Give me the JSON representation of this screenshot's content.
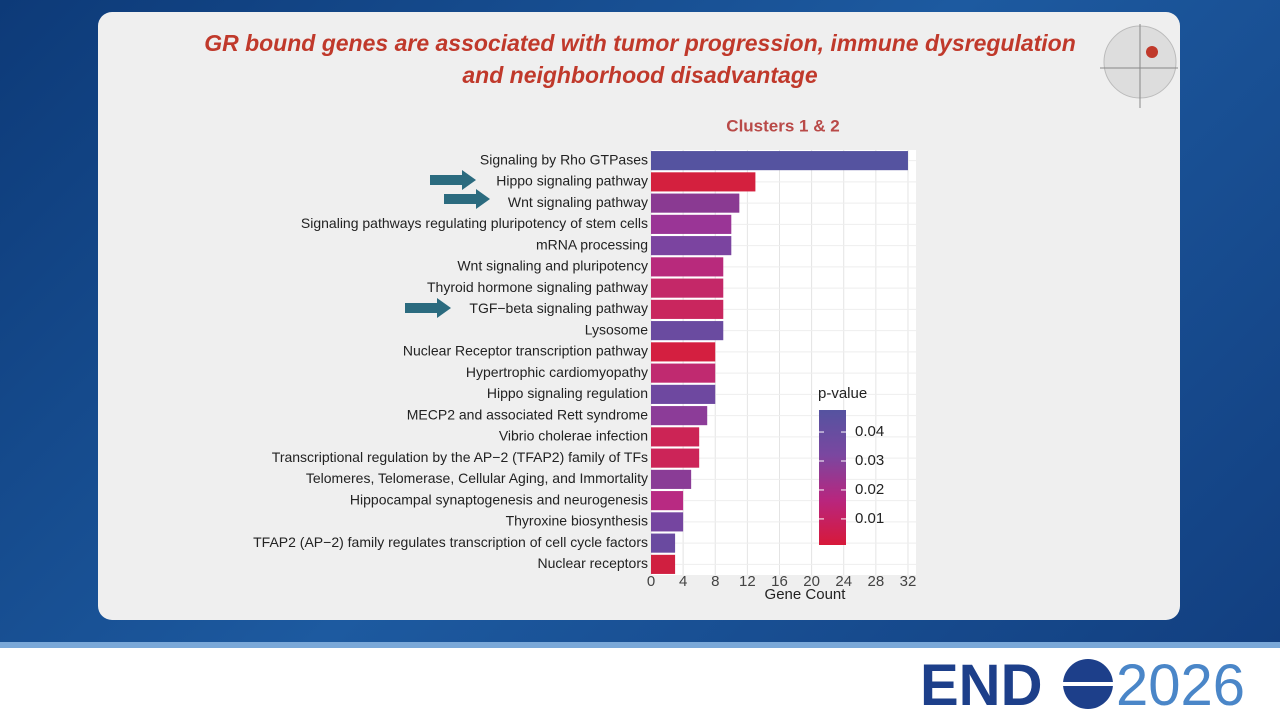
{
  "slide_title": [
    "GR bound genes are associated with tumor progression, immune dysregulation",
    "and neighborhood disadvantage"
  ],
  "logo": {
    "left": "END",
    "right": "2026"
  },
  "chart_data": {
    "type": "barh",
    "title": "Clusters 1 & 2",
    "xlabel": "Gene Count",
    "categories": [
      "Signaling by Rho GTPases",
      "Hippo signaling pathway",
      "Wnt signaling pathway",
      "Signaling pathways regulating pluripotency of stem cells",
      "mRNA processing",
      "Wnt signaling and pluripotency",
      "Thyroid hormone signaling pathway",
      "TGF−beta signaling pathway",
      "Lysosome",
      "Nuclear Receptor transcription pathway",
      "Hypertrophic cardiomyopathy",
      "Hippo signaling regulation",
      "MECP2 and associated Rett syndrome",
      "Vibrio cholerae infection",
      "Transcriptional regulation by the AP−2 (TFAP2) family of TFs",
      "Telomeres, Telomerase, Cellular Aging, and  Immortality",
      "Hippocampal synaptogenesis and neurogenesis",
      "Thyroxine biosynthesis",
      "TFAP2 (AP−2) family regulates transcription of cell cycle factors",
      "Nuclear receptors"
    ],
    "values": [
      32,
      13,
      11,
      10,
      10,
      9,
      9,
      9,
      9,
      8,
      8,
      8,
      7,
      6,
      6,
      5,
      4,
      4,
      3,
      3
    ],
    "colors": [
      "#5553a0",
      "#d4203e",
      "#8a3a92",
      "#9a3596",
      "#7b44a0",
      "#b82a7c",
      "#c42868",
      "#c9265e",
      "#6a4ba0",
      "#d41f40",
      "#c02a70",
      "#6e48a0",
      "#8c3c98",
      "#cc2455",
      "#cc2458",
      "#8a3c96",
      "#b82a82",
      "#7545a0",
      "#6a4aa0",
      "#d01f40"
    ],
    "xlim": [
      0,
      33
    ],
    "xticks": [
      0,
      4,
      8,
      12,
      16,
      20,
      24,
      28,
      32
    ],
    "grid": true,
    "colorbar": {
      "title": "p-value",
      "clim": [
        0.001,
        0.0476
      ],
      "ticks": [
        0.04,
        0.03,
        0.02,
        0.01
      ],
      "colors": [
        "#d7193a",
        "#b8267e",
        "#7a47a0",
        "#5553a0"
      ]
    }
  }
}
